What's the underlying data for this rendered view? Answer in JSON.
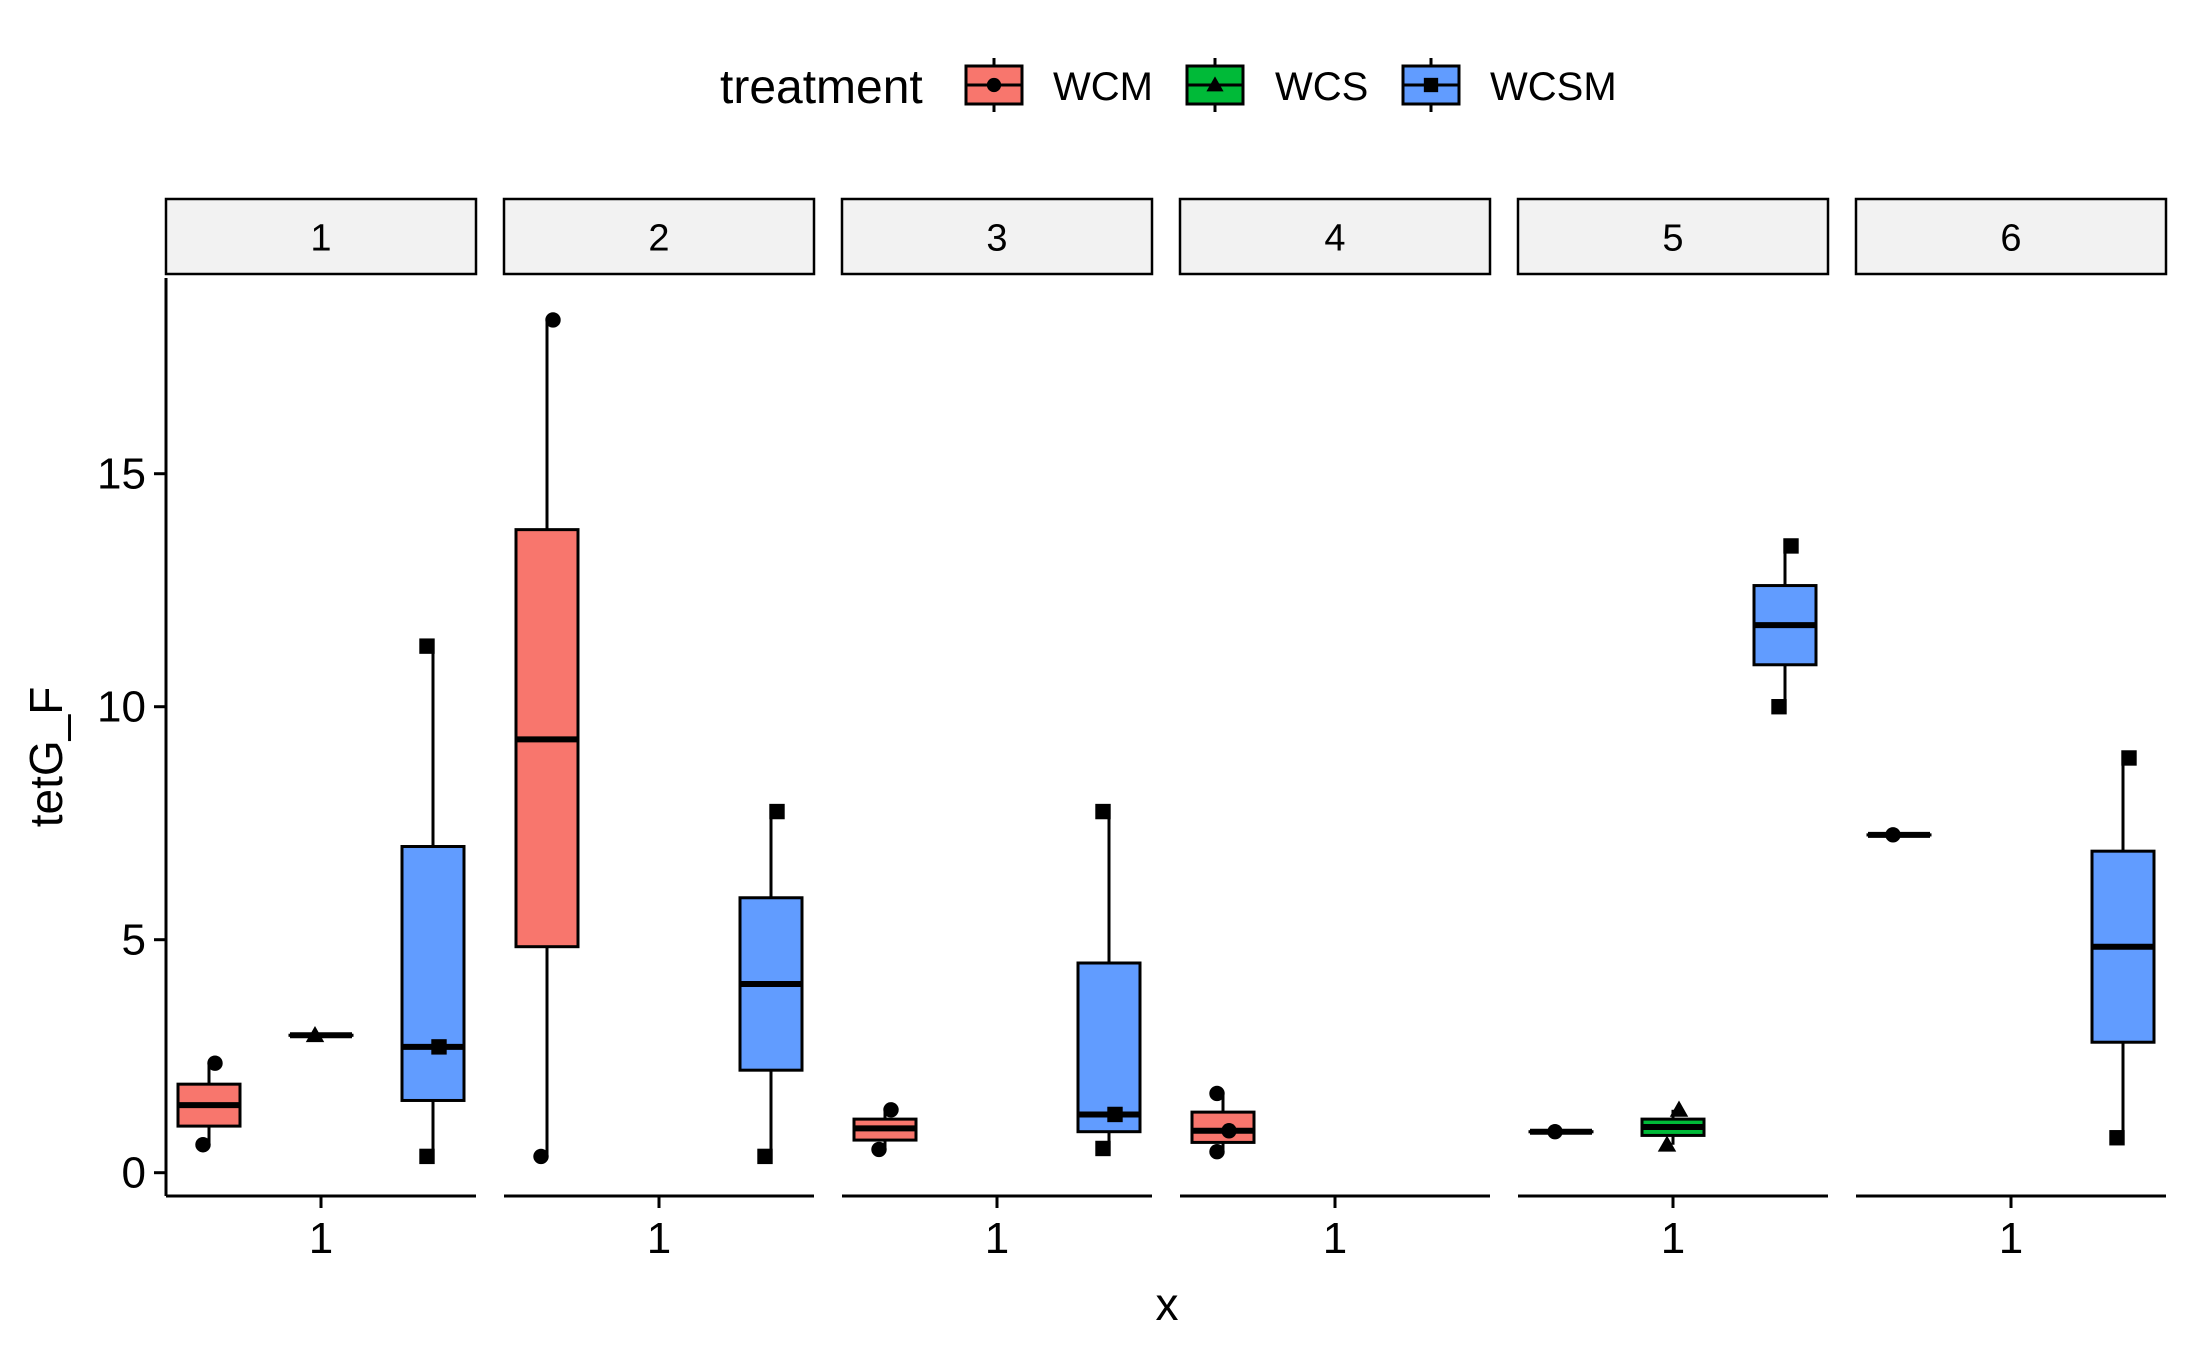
{
  "chart_data": {
    "type": "boxplot",
    "xlabel": "x",
    "ylabel": "tetG_F",
    "ylim": [
      -0.5,
      19.2
    ],
    "y_ticks": [
      0,
      5,
      10,
      15
    ],
    "legend": {
      "title": "treatment",
      "position": "top",
      "entries": [
        {
          "name": "WCM",
          "color": "#F8766D",
          "shape": "circle"
        },
        {
          "name": "WCS",
          "color": "#00BA38",
          "shape": "triangle"
        },
        {
          "name": "WCSM",
          "color": "#619CFF",
          "shape": "square"
        }
      ]
    },
    "panels": [
      {
        "label": "1",
        "x_tick": "1",
        "boxes": [
          {
            "treatment": "WCM",
            "q1": 1.0,
            "median": 1.45,
            "q3": 1.9,
            "whisker_low": 0.6,
            "whisker_high": 2.35,
            "points": [
              0.6,
              2.35
            ]
          },
          {
            "treatment": "WCS",
            "q1": 2.95,
            "median": 2.95,
            "q3": 2.95,
            "whisker_low": 2.95,
            "whisker_high": 2.95,
            "points": [
              2.95
            ]
          },
          {
            "treatment": "WCSM",
            "q1": 1.55,
            "median": 2.7,
            "q3": 7.0,
            "whisker_low": 0.35,
            "whisker_high": 11.3,
            "points": [
              0.35,
              2.7,
              11.3
            ]
          }
        ]
      },
      {
        "label": "2",
        "x_tick": "1",
        "boxes": [
          {
            "treatment": "WCM",
            "q1": 4.85,
            "median": 9.3,
            "q3": 13.8,
            "whisker_low": 0.35,
            "whisker_high": 18.3,
            "points": [
              0.35,
              18.3
            ]
          },
          {
            "treatment": "WCSM",
            "q1": 2.2,
            "median": 4.05,
            "q3": 5.9,
            "whisker_low": 0.35,
            "whisker_high": 7.75,
            "points": [
              0.35,
              7.75
            ]
          }
        ]
      },
      {
        "label": "3",
        "x_tick": "1",
        "boxes": [
          {
            "treatment": "WCM",
            "q1": 0.7,
            "median": 0.95,
            "q3": 1.15,
            "whisker_low": 0.5,
            "whisker_high": 1.35,
            "points": [
              0.5,
              1.35
            ]
          },
          {
            "treatment": "WCSM",
            "q1": 0.88,
            "median": 1.25,
            "q3": 4.5,
            "whisker_low": 0.52,
            "whisker_high": 7.75,
            "points": [
              0.52,
              1.25,
              7.75
            ]
          }
        ]
      },
      {
        "label": "4",
        "x_tick": "1",
        "boxes": [
          {
            "treatment": "WCM",
            "q1": 0.65,
            "median": 0.9,
            "q3": 1.3,
            "whisker_low": 0.45,
            "whisker_high": 1.7,
            "points": [
              0.45,
              0.9,
              1.7
            ]
          }
        ]
      },
      {
        "label": "5",
        "x_tick": "1",
        "boxes": [
          {
            "treatment": "WCM",
            "q1": 0.88,
            "median": 0.88,
            "q3": 0.88,
            "whisker_low": 0.88,
            "whisker_high": 0.88,
            "points": [
              0.88
            ]
          },
          {
            "treatment": "WCS",
            "q1": 0.8,
            "median": 0.98,
            "q3": 1.15,
            "whisker_low": 0.6,
            "whisker_high": 1.35,
            "points": [
              0.6,
              1.35
            ]
          },
          {
            "treatment": "WCSM",
            "q1": 10.9,
            "median": 11.75,
            "q3": 12.6,
            "whisker_low": 10.0,
            "whisker_high": 13.45,
            "points": [
              10.0,
              13.45
            ]
          }
        ]
      },
      {
        "label": "6",
        "x_tick": "1",
        "boxes": [
          {
            "treatment": "WCM",
            "q1": 7.25,
            "median": 7.25,
            "q3": 7.25,
            "whisker_low": 7.25,
            "whisker_high": 7.25,
            "points": [
              7.25
            ]
          },
          {
            "treatment": "WCSM",
            "q1": 2.8,
            "median": 4.85,
            "q3": 6.9,
            "whisker_low": 0.75,
            "whisker_high": 8.9,
            "points": [
              0.75,
              8.9
            ]
          }
        ]
      }
    ]
  }
}
